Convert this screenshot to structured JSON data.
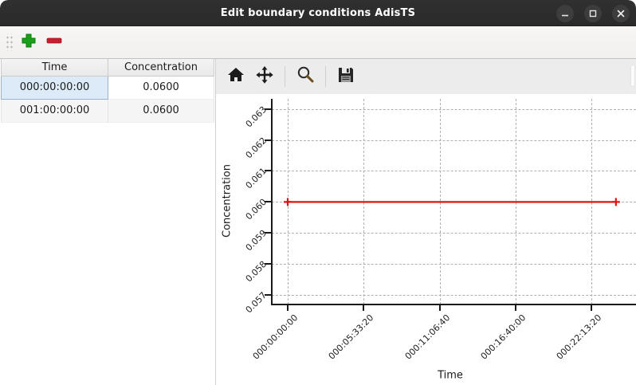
{
  "window": {
    "title": "Edit boundary conditions AdisTS",
    "controls": [
      {
        "name": "minimize",
        "icon": "minimize-icon"
      },
      {
        "name": "maximize",
        "icon": "maximize-icon"
      },
      {
        "name": "close",
        "icon": "close-icon"
      }
    ]
  },
  "toolbar": {
    "buttons": [
      {
        "name": "add-row",
        "icon": "plus-icon",
        "color": "#18a018"
      },
      {
        "name": "remove-row",
        "icon": "minus-icon",
        "color": "#c81e2e"
      }
    ]
  },
  "table": {
    "columns": [
      "Time",
      "Concentration"
    ],
    "rows": [
      {
        "time": "000:00:00:00",
        "concentration": "0.0600"
      },
      {
        "time": "001:00:00:00",
        "concentration": "0.0600"
      }
    ],
    "selected": {
      "row": 0,
      "column": "Time"
    },
    "selection_color": "#dcebf7"
  },
  "plot_toolbar": {
    "icons": [
      "home-icon",
      "pan-icon",
      "zoom-icon",
      "save-icon"
    ]
  },
  "chart_data": {
    "type": "line",
    "title": "",
    "xlabel": "Time",
    "ylabel": "Concentration",
    "x_tick_labels": [
      "000:00:00:00",
      "000:05:33:20",
      "000:11:06:40",
      "000:16:40:00",
      "000:22:13:20"
    ],
    "x_tick_seconds": [
      0,
      20000,
      40000,
      60000,
      80000
    ],
    "y_tick_labels": [
      "0.063",
      "0.062",
      "0.061",
      "0.060",
      "0.059",
      "0.058",
      "0.057"
    ],
    "y_ticks": [
      0.063,
      0.062,
      0.061,
      0.06,
      0.059,
      0.058,
      0.057
    ],
    "ylim": [
      0.0567,
      0.0633
    ],
    "grid": true,
    "grid_style": "dashed",
    "legend": "none",
    "series": [
      {
        "name": "boundary-condition",
        "color": "#e01212",
        "marker": "plus",
        "x_labels": [
          "000:00:00:00",
          "001:00:00:00"
        ],
        "x_seconds": [
          0,
          86400
        ],
        "y": [
          0.06,
          0.06
        ]
      }
    ]
  }
}
